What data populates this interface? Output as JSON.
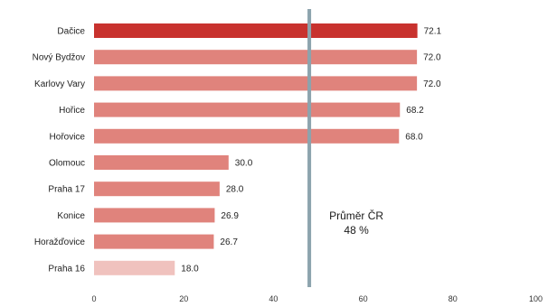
{
  "chart_data": {
    "type": "bar",
    "orientation": "horizontal",
    "categories": [
      "Dačice",
      "Nový Bydžov",
      "Karlovy Vary",
      "Hořice",
      "Hořovice",
      "Olomouc",
      "Praha 17",
      "Konice",
      "Horažďovice",
      "Praha 16"
    ],
    "values": [
      72.1,
      72.0,
      72.0,
      68.2,
      68.0,
      30.0,
      28.0,
      26.9,
      26.7,
      18.0
    ],
    "value_labels": [
      "72.1",
      "72.0",
      "72.0",
      "68.2",
      "68.0",
      "30.0",
      "28.0",
      "26.9",
      "26.7",
      "18.0"
    ],
    "bar_colors": [
      "#c8322e",
      "#e0837c",
      "#e0837c",
      "#e0837c",
      "#e0837c",
      "#e0837c",
      "#e0837c",
      "#e0837c",
      "#e0837c",
      "#f0c2be"
    ],
    "xlim": [
      0,
      100
    ],
    "xticks": [
      0,
      20,
      40,
      60,
      80,
      100
    ],
    "reference_line": {
      "value": 48,
      "label_line1": "Průměr ČR",
      "label_line2": "48 %",
      "color": "#8ca3ad"
    },
    "grid": false,
    "legend": "none"
  }
}
